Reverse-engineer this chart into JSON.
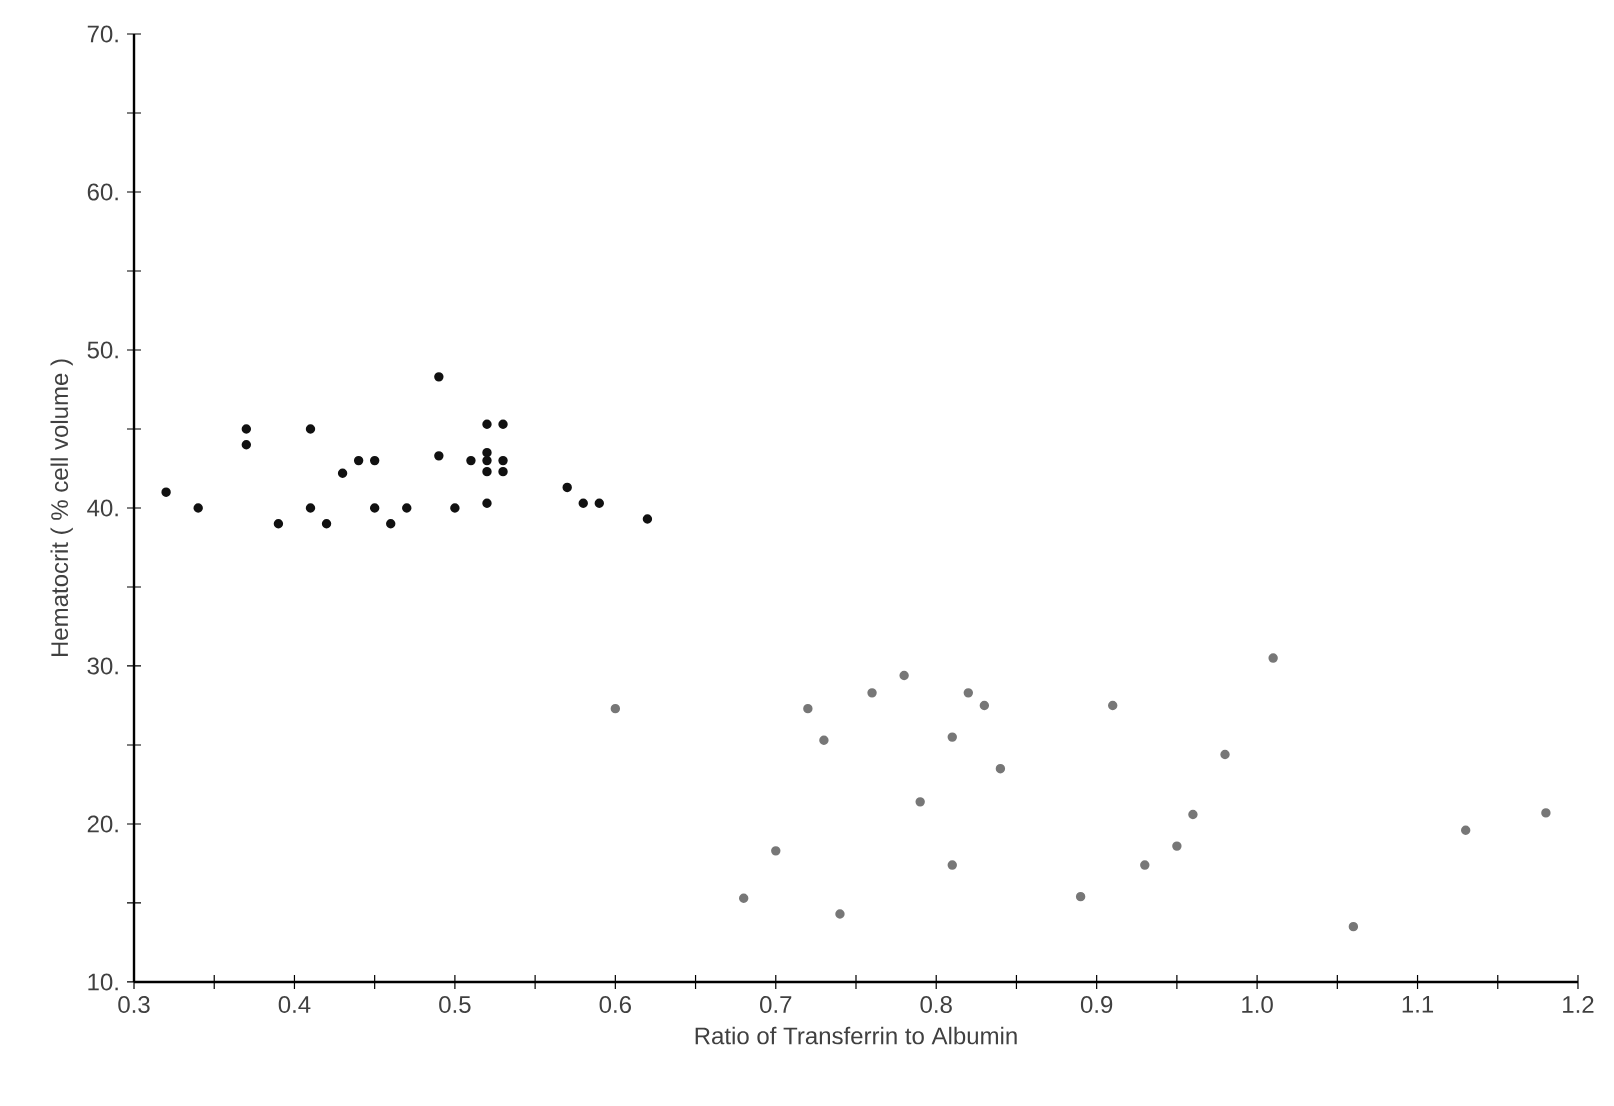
{
  "chart_data": {
    "type": "scatter",
    "xlabel": "Ratio of Transferrin to Albumin",
    "ylabel": "Hematocrit ( % cell volume )",
    "xlim": [
      0.3,
      1.2
    ],
    "ylim": [
      10,
      70
    ],
    "xticks": [
      {
        "value": 0.3,
        "label": "0.3"
      },
      {
        "value": 0.35,
        "label": null
      },
      {
        "value": 0.4,
        "label": "0.4"
      },
      {
        "value": 0.45,
        "label": null
      },
      {
        "value": 0.5,
        "label": "0.5"
      },
      {
        "value": 0.55,
        "label": null
      },
      {
        "value": 0.6,
        "label": "0.6"
      },
      {
        "value": 0.65,
        "label": null
      },
      {
        "value": 0.7,
        "label": "0.7"
      },
      {
        "value": 0.75,
        "label": null
      },
      {
        "value": 0.8,
        "label": "0.8"
      },
      {
        "value": 0.85,
        "label": null
      },
      {
        "value": 0.9,
        "label": "0.9"
      },
      {
        "value": 0.95,
        "label": null
      },
      {
        "value": 1.0,
        "label": "1.0"
      },
      {
        "value": 1.05,
        "label": null
      },
      {
        "value": 1.1,
        "label": "1.1"
      },
      {
        "value": 1.15,
        "label": null
      },
      {
        "value": 1.2,
        "label": "1.2"
      }
    ],
    "yticks": [
      {
        "value": 10,
        "label": "10."
      },
      {
        "value": 15,
        "label": null
      },
      {
        "value": 20,
        "label": "20."
      },
      {
        "value": 25,
        "label": null
      },
      {
        "value": 30,
        "label": "30."
      },
      {
        "value": 35,
        "label": null
      },
      {
        "value": 40,
        "label": "40."
      },
      {
        "value": 45,
        "label": null
      },
      {
        "value": 50,
        "label": "50."
      },
      {
        "value": 55,
        "label": null
      },
      {
        "value": 60,
        "label": "60."
      },
      {
        "value": 65,
        "label": null
      },
      {
        "value": 70,
        "label": "70."
      }
    ],
    "grid": false,
    "legend": false,
    "series": [
      {
        "color": "#111111",
        "x": [
          0.32,
          0.34,
          0.37,
          0.37,
          0.39,
          0.41,
          0.41,
          0.42,
          0.43,
          0.44,
          0.45,
          0.45,
          0.46,
          0.47,
          0.49,
          0.49,
          0.5,
          0.51,
          0.52,
          0.52,
          0.52,
          0.52,
          0.53,
          0.53,
          0.53,
          0.52,
          0.57,
          0.58,
          0.59,
          0.62
        ],
        "values": [
          41,
          40,
          45,
          44,
          39,
          45,
          40,
          39,
          42.2,
          43,
          43,
          40,
          39,
          40,
          48.3,
          43.3,
          40,
          43,
          45.3,
          43.5,
          43,
          42.3,
          45.3,
          43,
          42.3,
          40.3,
          41.3,
          40.3,
          40.3,
          39.3
        ]
      },
      {
        "color": "#777777",
        "x": [
          0.6,
          0.72,
          0.73,
          0.76,
          0.78,
          0.82,
          0.83,
          0.81,
          0.84,
          0.79,
          0.91,
          0.7,
          0.68,
          0.74,
          0.81,
          0.89,
          1.01,
          0.98,
          0.96,
          0.95,
          0.93,
          1.13,
          1.18,
          1.06
        ],
        "values": [
          27.3,
          27.3,
          25.3,
          28.3,
          29.4,
          28.3,
          27.5,
          25.5,
          23.5,
          21.4,
          27.5,
          18.3,
          15.3,
          14.3,
          17.4,
          15.4,
          30.5,
          24.4,
          20.6,
          18.6,
          17.4,
          19.6,
          20.7,
          13.5
        ]
      }
    ]
  }
}
